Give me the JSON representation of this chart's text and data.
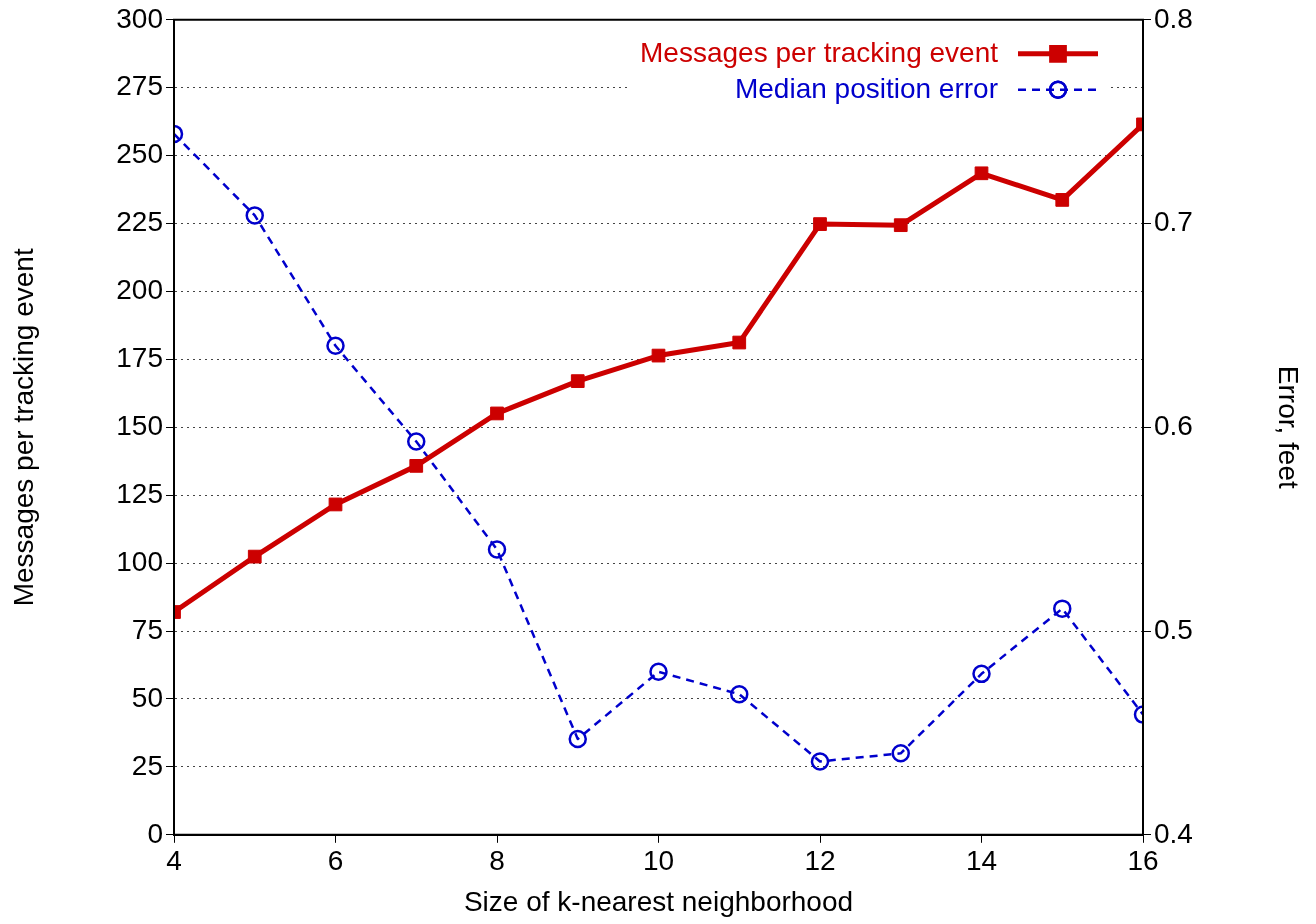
{
  "chart_data": {
    "type": "line",
    "xlabel": "Size of k-nearest neighborhood",
    "ylabel": "Messages per tracking event",
    "y2label": "Error, feet",
    "x": [
      4,
      5,
      6,
      7,
      8,
      9,
      10,
      11,
      12,
      13,
      14,
      15,
      16
    ],
    "series": [
      {
        "name": "Messages per tracking event",
        "color": "#cc0000",
        "marker": "square",
        "line_style": "solid",
        "values": [
          82,
          102.4,
          121.6,
          135.8,
          155.1,
          167,
          176.4,
          181.2,
          224.8,
          224.4,
          243.5,
          233.7,
          261.5
        ]
      },
      {
        "name": "Median position error",
        "color": "#0000cc",
        "marker": "circle",
        "line_style": "dashed",
        "axis": "y2",
        "values": [
          0.744,
          0.704,
          0.64,
          0.593,
          0.54,
          0.447,
          0.48,
          0.469,
          0.436,
          0.44,
          0.479,
          0.511,
          0.459
        ]
      }
    ],
    "xlim": [
      4,
      16
    ],
    "xticks": [
      4,
      6,
      8,
      10,
      12,
      14,
      16
    ],
    "ylim": [
      0,
      300
    ],
    "yticks": [
      0,
      25,
      50,
      75,
      100,
      125,
      150,
      175,
      200,
      225,
      250,
      275,
      300
    ],
    "y2lim": [
      0.4,
      0.8
    ],
    "y2ticks": [
      0.4,
      0.5,
      0.6,
      0.7,
      0.8
    ],
    "grid": "y",
    "legend": "top right"
  }
}
